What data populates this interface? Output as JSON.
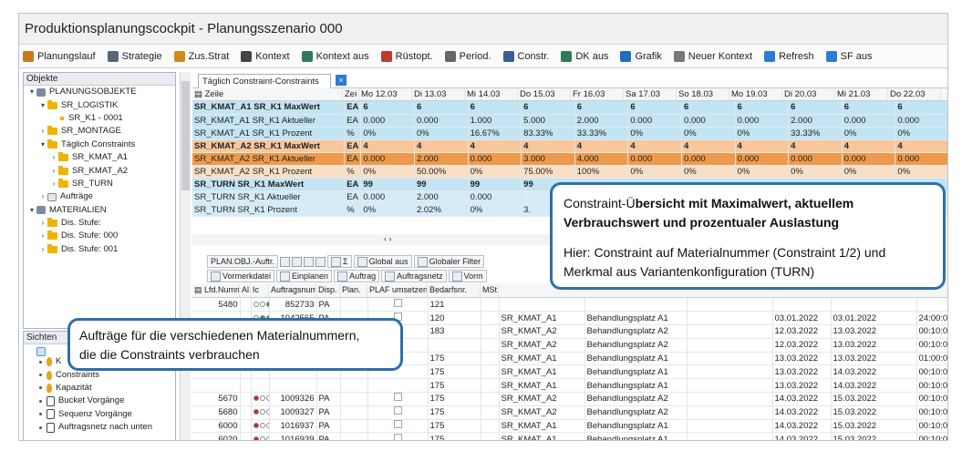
{
  "window": {
    "title": "Produktionsplanungscockpit - Planungsszenario 000"
  },
  "toolbar": [
    {
      "label": "Planungslauf",
      "icon": "wand-icon",
      "color": "#c77a1a"
    },
    {
      "label": "Strategie",
      "icon": "strategy-icon",
      "color": "#556677"
    },
    {
      "label": "Zus.Strat",
      "icon": "strategy-plus-icon",
      "color": "#d08b1e"
    },
    {
      "label": "Kontext",
      "icon": "funnel-icon",
      "color": "#444444"
    },
    {
      "label": "Kontext aus",
      "icon": "funnel-off-icon",
      "color": "#2f7a5a"
    },
    {
      "label": "Rüstopt.",
      "icon": "wand-icon",
      "color": "#c0392b"
    },
    {
      "label": "Period.",
      "icon": "period-icon",
      "color": "#666666"
    },
    {
      "label": "Constr.",
      "icon": "constraint-icon",
      "color": "#3a5f90"
    },
    {
      "label": "DK aus",
      "icon": "funnel-off-icon",
      "color": "#2f7a5a"
    },
    {
      "label": "Grafik",
      "icon": "chart-icon",
      "color": "#1f6fbf"
    },
    {
      "label": "Neuer Kontext",
      "icon": "context-new-icon",
      "color": "#777777"
    },
    {
      "label": "Refresh",
      "icon": "refresh-icon",
      "color": "#2e7bd6"
    },
    {
      "label": "SF aus",
      "icon": "refresh-off-icon",
      "color": "#2e7bd6"
    }
  ],
  "objects_panel": {
    "header": "Objekte",
    "tree": [
      {
        "label": "PLANUNGSOBJEKTE",
        "level": 0,
        "arrow": "▾",
        "kind": "root"
      },
      {
        "label": "SR_LOGISTIK",
        "level": 1,
        "arrow": "▾",
        "kind": "folder"
      },
      {
        "label": "SR_K1 - 0001",
        "level": 2,
        "arrow": "",
        "kind": "leaf"
      },
      {
        "label": "SR_MONTAGE",
        "level": 1,
        "arrow": "›",
        "kind": "folder"
      },
      {
        "label": "Täglich Constraints",
        "level": 1,
        "arrow": "▾",
        "kind": "folder"
      },
      {
        "label": "SR_KMAT_A1",
        "level": 2,
        "arrow": "›",
        "kind": "folder"
      },
      {
        "label": "SR_KMAT_A2",
        "level": 2,
        "arrow": "›",
        "kind": "folder"
      },
      {
        "label": "SR_TURN",
        "level": 2,
        "arrow": "›",
        "kind": "folder"
      },
      {
        "label": "Aufträge",
        "level": 1,
        "arrow": "›",
        "kind": "orders"
      },
      {
        "label": "MATERIALIEN",
        "level": 0,
        "arrow": "▾",
        "kind": "root"
      },
      {
        "label": "Dis. Stufe:",
        "level": 1,
        "arrow": "›",
        "kind": "folder"
      },
      {
        "label": "Dis. Stufe: 000",
        "level": 1,
        "arrow": "›",
        "kind": "folder"
      },
      {
        "label": "Dis. Stufe: 001",
        "level": 1,
        "arrow": "›",
        "kind": "folder"
      }
    ]
  },
  "views_panel": {
    "header": "Sichten",
    "items": [
      {
        "label": "K",
        "kind": "flame"
      },
      {
        "label": "Constraints",
        "kind": "flame"
      },
      {
        "label": "Kapazität",
        "kind": "flame"
      },
      {
        "label": "Bucket Vorgänge",
        "kind": "doc"
      },
      {
        "label": "Sequenz Vorgänge",
        "kind": "doc"
      },
      {
        "label": "Auftragsnetz nach unten",
        "kind": "doc"
      }
    ]
  },
  "tab": {
    "label": "Täglich Constraint-Constraints",
    "close": "×"
  },
  "constraint_grid": {
    "columns": [
      "Zeile",
      "Zei",
      "Mo 12.03",
      "Di 13.03",
      "Mi 14.03",
      "Do 15.03",
      "Fr 16.03",
      "Sa 17.03",
      "So 18.03",
      "Mo 19.03",
      "Di 20.03",
      "Mi 21.03",
      "Do 22.03"
    ],
    "rows": [
      {
        "style": "blue mx",
        "cells": [
          "SR_KMAT_A1 SR_K1 MaxWert",
          "EA",
          "6",
          "6",
          "6",
          "6",
          "6",
          "6",
          "6",
          "6",
          "6",
          "6",
          "6"
        ]
      },
      {
        "style": "blue",
        "cells": [
          "SR_KMAT_A1 SR_K1 Aktueller",
          "EA",
          "0.000",
          "0.000",
          "1.000",
          "5.000",
          "2.000",
          "0.000",
          "0.000",
          "0.000",
          "2.000",
          "0.000",
          "0.000"
        ]
      },
      {
        "style": "blue",
        "cells": [
          "SR_KMAT_A1 SR_K1 Prozent",
          "%",
          "0%",
          "0%",
          "16.67%",
          "83.33%",
          "33.33%",
          "0%",
          "0%",
          "0%",
          "33.33%",
          "0%",
          "0%"
        ]
      },
      {
        "style": "orange mx",
        "cells": [
          "SR_KMAT_A2 SR_K1 MaxWert",
          "EA",
          "4",
          "4",
          "4",
          "4",
          "4",
          "4",
          "4",
          "4",
          "4",
          "4",
          "4"
        ]
      },
      {
        "style": "sel",
        "cells": [
          "SR_KMAT_A2 SR_K1 Aktueller",
          "EA",
          "0.000",
          "2.000",
          "0.000",
          "3.000",
          "4.000",
          "0.000",
          "0.000",
          "0.000",
          "0.000",
          "0.000",
          "0.000"
        ]
      },
      {
        "style": "orangelt",
        "cells": [
          "SR_KMAT_A2 SR_K1 Prozent",
          "%",
          "0%",
          "50.00%",
          "0%",
          "75.00%",
          "100%",
          "0%",
          "0%",
          "0%",
          "0%",
          "0%",
          "0%"
        ]
      },
      {
        "style": "blue mx",
        "cells": [
          "SR_TURN SR_K1 MaxWert",
          "EA",
          "99",
          "99",
          "99",
          "99",
          "",
          "",
          "",
          "",
          "",
          "",
          ""
        ]
      },
      {
        "style": "bluelt",
        "cells": [
          "SR_TURN SR_K1 Aktueller",
          "EA",
          "0.000",
          "2.000",
          "0.000",
          "",
          "",
          "",
          "",
          "",
          "",
          "",
          ""
        ]
      },
      {
        "style": "bluelt",
        "cells": [
          "SR_TURN SR_K1 Prozent",
          "%",
          "0%",
          "2.02%",
          "0%",
          "3.",
          "",
          "",
          "",
          "",
          "",
          "",
          ""
        ]
      }
    ]
  },
  "grid_scroll": "‹ ›",
  "orders_toolbar1": [
    "PLAN.OBJ.-Auftr.",
    "Σ",
    "Global aus",
    "Globaler Filter"
  ],
  "orders_toolbar2": [
    "Vormerkdatei",
    "Einplanen",
    "Auftrag",
    "Auftragsnetz",
    "Vorm"
  ],
  "orders_grid": {
    "columns": [
      "Lfd.Nummer",
      "Al.",
      "Ic",
      "Auftragsnum",
      "Disp.",
      "Plan.",
      "PLAF umsetzen",
      "Bedarfsnr.",
      "MSt"
    ],
    "rows": [
      {
        "lfd": "5480",
        "lamp": "ggg",
        "auftrag": "852733",
        "disp": "PA",
        "bedarf": "121",
        "mat": "",
        "platz": "",
        "d1": "",
        "d2": "",
        "t": ""
      },
      {
        "lfd": "",
        "lamp": "ggg2",
        "auftrag": "1042565",
        "disp": "PA",
        "bedarf": "120",
        "mat": "SR_KMAT_A1",
        "platz": "Behandlungsplatz A1",
        "d1": "03.01.2022",
        "d2": "03.01.2022",
        "t": "24:00:00"
      },
      {
        "lfd": "5290",
        "lamp": "roo",
        "auftrag": "1001360",
        "disp": "FE",
        "bedarf": "183",
        "mat": "SR_KMAT_A2",
        "platz": "Behandlungsplatz A2",
        "d1": "12.03.2022",
        "d2": "13.03.2022",
        "t": "00:10:00"
      },
      {
        "lfd": "",
        "lamp": "",
        "auftrag": "",
        "disp": "",
        "bedarf": "",
        "mat": "SR_KMAT_A2",
        "platz": "Behandlungsplatz A2",
        "d1": "12.03.2022",
        "d2": "13.03.2022",
        "t": "00:10:00"
      },
      {
        "lfd": "",
        "lamp": "",
        "auftrag": "",
        "disp": "",
        "bedarf": "175",
        "mat": "SR_KMAT_A1",
        "platz": "Behandlungsplatz A1",
        "d1": "13.03.2022",
        "d2": "13.03.2022",
        "t": "01:00:00"
      },
      {
        "lfd": "",
        "lamp": "",
        "auftrag": "",
        "disp": "",
        "bedarf": "175",
        "mat": "SR_KMAT_A1",
        "platz": "Behandlungsplatz A1",
        "d1": "13.03.2022",
        "d2": "14.03.2022",
        "t": "00:10:00"
      },
      {
        "lfd": "",
        "lamp": "",
        "auftrag": "",
        "disp": "",
        "bedarf": "175",
        "mat": "SR_KMAT_A1",
        "platz": "Behandlungsplatz A1",
        "d1": "13.03.2022",
        "d2": "14.03.2022",
        "t": "00:10:00"
      },
      {
        "lfd": "5670",
        "lamp": "roo",
        "auftrag": "1009326",
        "disp": "PA",
        "bedarf": "175",
        "mat": "SR_KMAT_A2",
        "platz": "Behandlungsplatz A2",
        "d1": "14.03.2022",
        "d2": "15.03.2022",
        "t": "00:10:00"
      },
      {
        "lfd": "5680",
        "lamp": "roo",
        "auftrag": "1009327",
        "disp": "PA",
        "bedarf": "175",
        "mat": "SR_KMAT_A2",
        "platz": "Behandlungsplatz A2",
        "d1": "14.03.2022",
        "d2": "15.03.2022",
        "t": "00:10:00"
      },
      {
        "lfd": "6000",
        "lamp": "roo",
        "auftrag": "1016937",
        "disp": "PA",
        "bedarf": "175",
        "mat": "SR_KMAT_A1",
        "platz": "Behandlungsplatz A1",
        "d1": "14.03.2022",
        "d2": "15.03.2022",
        "t": "00:10:00"
      },
      {
        "lfd": "6020",
        "lamp": "roo",
        "auftrag": "1016939",
        "disp": "PA",
        "bedarf": "175",
        "mat": "SR_KMAT_A1",
        "platz": "Behandlungsplatz A1",
        "d1": "14.03.2022",
        "d2": "15.03.2022",
        "t": "00:10:00"
      },
      {
        "lfd": "6030",
        "lamp": "roo",
        "auftrag": "1017143",
        "disp": "PA",
        "bedarf": "177",
        "mat": "SR_KMAT_A1",
        "platz": "Behandlungsplatz A1",
        "d1": "14.03.2022",
        "d2": "15.03.2022",
        "t": "00:10:00"
      }
    ]
  },
  "callout_constraints": {
    "line1a": "Constraint-Ü",
    "line1b": "bersicht mit Maximalwert, aktuellem",
    "line2": "Verbrauchswert und prozentualer Auslastung",
    "line3": "Hier: Constraint auf Materialnummer (Constraint 1/2) und",
    "line4": "Merkmal  aus Variantenkonfiguration (TURN)"
  },
  "callout_orders": {
    "line1": "Aufträge für die verschiedenen Materialnummern,",
    "line2": "die die Constraints verbrauchen"
  },
  "colors": {
    "accent_blue": "#2f6fa8",
    "row_blue": "#c3e4f3",
    "row_orange": "#f7c79b",
    "lamp_red": "#d62020",
    "lamp_green": "#2aa02a"
  }
}
